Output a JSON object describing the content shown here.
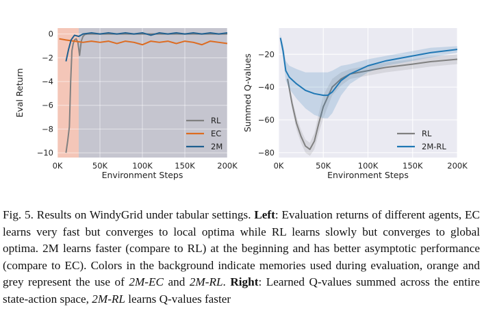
{
  "chart_data": [
    {
      "type": "line",
      "xlabel": "Environment Steps",
      "ylabel": "Eval Return",
      "xlim": [
        0,
        200000
      ],
      "ylim": [
        -10.4,
        0.5
      ],
      "xticks": [
        0,
        50000,
        100000,
        150000,
        200000
      ],
      "xtick_labels": [
        "0K",
        "50K",
        "100K",
        "150K",
        "200K"
      ],
      "yticks": [
        0,
        -2,
        -4,
        -6,
        -8,
        -10
      ],
      "ytick_labels": [
        "0",
        "−2",
        "−4",
        "−6",
        "−8",
        "−10"
      ],
      "legend_position": "lower-right",
      "grid": true,
      "background_regions": [
        {
          "x": [
            0,
            25000
          ],
          "color": "#f4c6b8"
        },
        {
          "x": [
            25000,
            200000
          ],
          "color": "#c5c5cf"
        }
      ],
      "series": [
        {
          "name": "RL",
          "color": "#808080",
          "x": [
            10000,
            12000,
            14000,
            15500,
            17000,
            18500,
            20000,
            22000,
            24000,
            26000,
            28000,
            30000,
            32000,
            35000,
            40000,
            60000,
            100000,
            150000,
            200000
          ],
          "y": [
            -10.0,
            -9.0,
            -7.8,
            -4.0,
            -1.4,
            -0.8,
            -0.5,
            -0.4,
            -0.7,
            -1.8,
            -0.6,
            -0.2,
            -0.05,
            0.0,
            0.0,
            0.0,
            0.0,
            0.0,
            0.0
          ]
        },
        {
          "name": "EC",
          "color": "#dd6b20",
          "x": [
            2000,
            10000,
            20000,
            30000,
            40000,
            50000,
            60000,
            70000,
            80000,
            90000,
            100000,
            110000,
            120000,
            130000,
            140000,
            150000,
            160000,
            170000,
            180000,
            190000,
            200000
          ],
          "y": [
            -0.4,
            -0.5,
            -0.6,
            -0.7,
            -0.6,
            -0.7,
            -0.6,
            -0.8,
            -0.6,
            -0.7,
            -0.9,
            -0.6,
            -0.7,
            -0.6,
            -0.8,
            -0.6,
            -0.7,
            -0.9,
            -0.6,
            -0.7,
            -0.8
          ]
        },
        {
          "name": "2M",
          "color": "#1f5f8f",
          "x": [
            10000,
            13000,
            16000,
            20000,
            25000,
            30000,
            40000,
            50000,
            60000,
            70000,
            80000,
            90000,
            100000,
            110000,
            120000,
            130000,
            140000,
            150000,
            160000,
            170000,
            180000,
            190000,
            200000
          ],
          "y": [
            -2.3,
            -1.3,
            -0.5,
            -0.1,
            -0.2,
            0.0,
            0.1,
            0.0,
            0.1,
            0.0,
            0.1,
            0.0,
            0.1,
            -0.1,
            0.1,
            0.0,
            0.1,
            0.0,
            0.1,
            0.0,
            0.1,
            0.0,
            0.1
          ]
        }
      ]
    },
    {
      "type": "line",
      "xlabel": "Environment Steps",
      "ylabel": "Summed Q-values",
      "xlim": [
        0,
        200000
      ],
      "ylim": [
        -83,
        -4
      ],
      "xticks": [
        0,
        50000,
        100000,
        150000,
        200000
      ],
      "xtick_labels": [
        "0K",
        "50K",
        "100K",
        "150K",
        "200K"
      ],
      "yticks": [
        -20,
        -40,
        -60,
        -80
      ],
      "ytick_labels": [
        "−20",
        "−40",
        "−60",
        "−80"
      ],
      "legend_position": "lower-right",
      "grid": true,
      "series": [
        {
          "name": "RL",
          "color": "#808080",
          "x": [
            10000,
            15000,
            20000,
            25000,
            30000,
            35000,
            40000,
            45000,
            50000,
            60000,
            70000,
            80000,
            100000,
            120000,
            150000,
            170000,
            200000
          ],
          "y": [
            -35,
            -50,
            -62,
            -70,
            -76,
            -78,
            -73,
            -62,
            -52,
            -40,
            -35,
            -32,
            -30,
            -28,
            -26,
            -24.5,
            -23
          ],
          "band": [
            2,
            3,
            4,
            4,
            4,
            4,
            5,
            6,
            7,
            5,
            4,
            3,
            3,
            3,
            3,
            3,
            3
          ]
        },
        {
          "name": "2M-RL",
          "color": "#1f77b4",
          "x": [
            2000,
            5000,
            8000,
            12000,
            20000,
            30000,
            40000,
            50000,
            55000,
            60000,
            70000,
            80000,
            100000,
            120000,
            150000,
            170000,
            200000
          ],
          "y": [
            -10,
            -18,
            -30,
            -34,
            -38,
            -42,
            -44,
            -45,
            -45,
            -43,
            -36,
            -32,
            -27,
            -24,
            -21,
            -19,
            -17
          ],
          "band": [
            2,
            4,
            6,
            7,
            9,
            11,
            13,
            14,
            14,
            13,
            9,
            6,
            4,
            3,
            3,
            3,
            2
          ]
        }
      ]
    }
  ],
  "caption": {
    "p1": "Fig. 5.  Results on WindyGrid under tabular settings. ",
    "left_label": "Left",
    "p2": ": Evaluation returns of different agents, EC learns very fast but converges to local optima while RL learns slowly but converges to global optima. 2M learns faster (compare to RL) at the beginning and has better asymptotic performance (compare to EC). Colors in the background indicate memories used during evaluation, orange and grey represent the use of ",
    "em1": "2M-EC",
    "p3": " and ",
    "em2": "2M-RL",
    "p4": ". ",
    "right_label": "Right",
    "p5": ": Learned Q-values summed across the entire state-action space, ",
    "em3": "2M-RL",
    "p6": " learns Q-values faster"
  }
}
